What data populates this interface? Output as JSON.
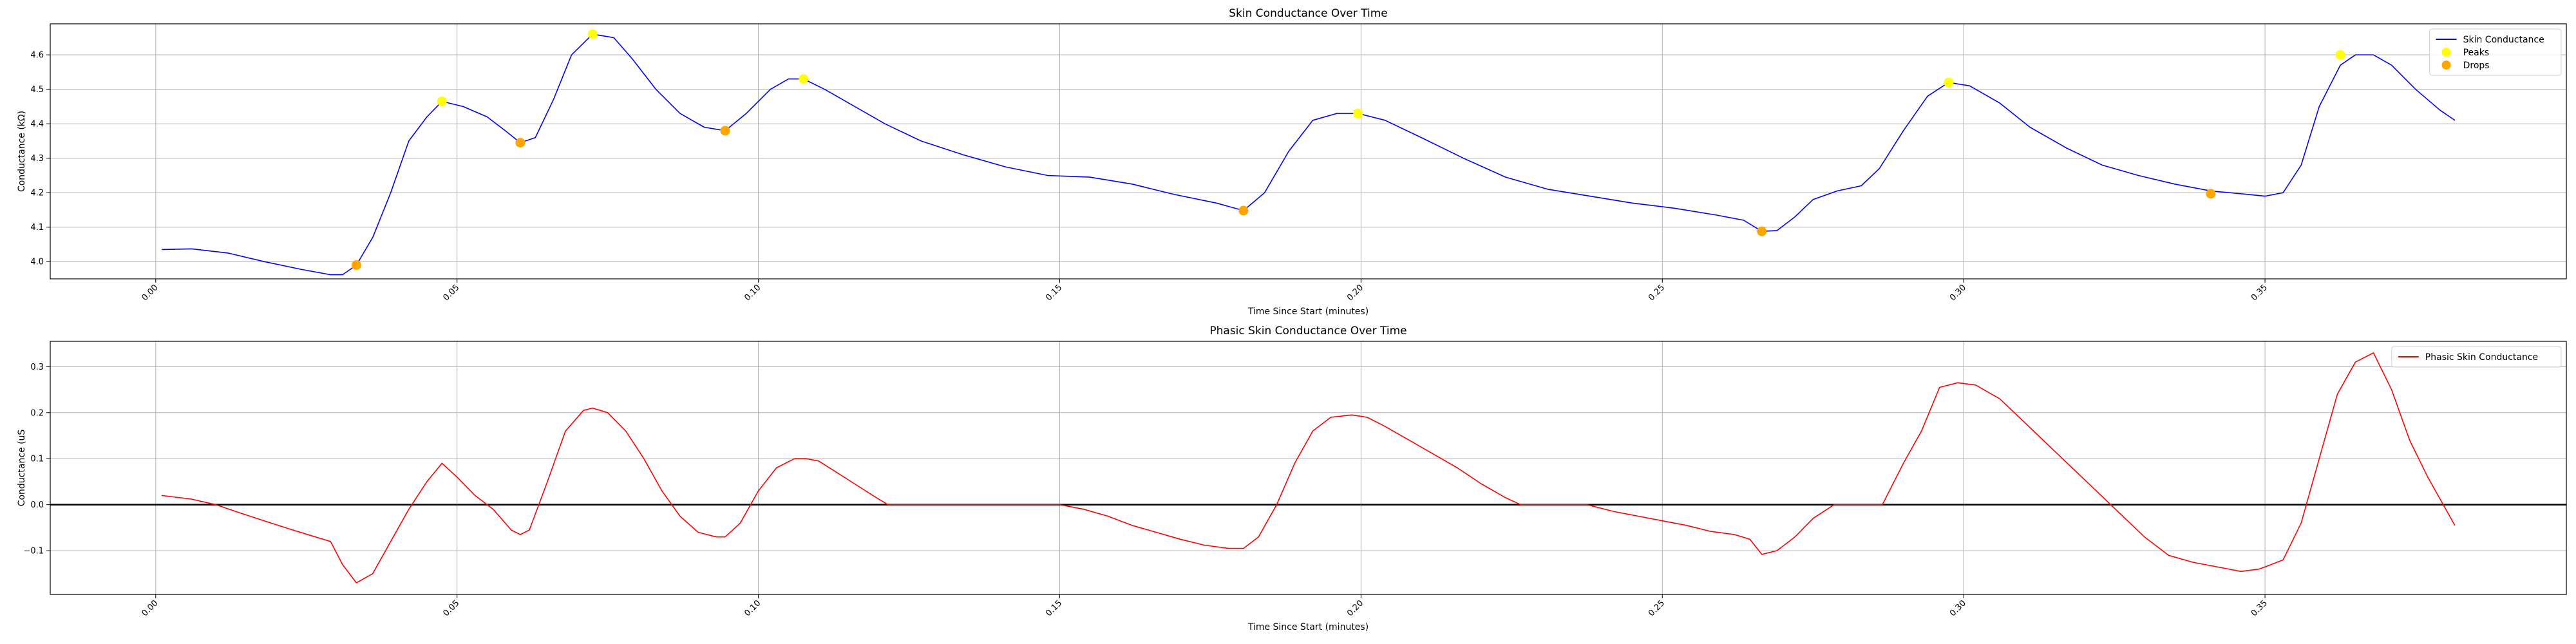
{
  "chart_data": [
    {
      "type": "line",
      "title": "Skin Conductance Over Time",
      "xlabel": "Time Since Start (minutes)",
      "ylabel": "Conductance (kΩ)",
      "xlim": [
        -0.0175,
        0.4
      ],
      "ylim": [
        3.95,
        4.69
      ],
      "xticks": [
        0.0,
        0.05,
        0.1,
        0.15,
        0.2,
        0.25,
        0.3,
        0.35
      ],
      "xtick_labels": [
        "0.00",
        "0.05",
        "0.10",
        "0.15",
        "0.20",
        "0.25",
        "0.30",
        "0.35"
      ],
      "yticks": [
        4.0,
        4.1,
        4.2,
        4.3,
        4.4,
        4.5,
        4.6
      ],
      "ytick_labels": [
        "4.0",
        "4.1",
        "4.2",
        "4.3",
        "4.4",
        "4.5",
        "4.6"
      ],
      "grid": true,
      "legend_position": "top-right",
      "series": [
        {
          "name": "Skin Conductance",
          "kind": "line",
          "color": "#0000ff",
          "x": [
            0.001,
            0.006,
            0.012,
            0.018,
            0.024,
            0.029,
            0.031,
            0.0333,
            0.036,
            0.039,
            0.042,
            0.045,
            0.0475,
            0.051,
            0.055,
            0.058,
            0.0605,
            0.063,
            0.066,
            0.069,
            0.0725,
            0.076,
            0.079,
            0.083,
            0.087,
            0.091,
            0.0945,
            0.098,
            0.102,
            0.105,
            0.1075,
            0.111,
            0.116,
            0.121,
            0.127,
            0.134,
            0.141,
            0.148,
            0.155,
            0.162,
            0.169,
            0.176,
            0.1805,
            0.184,
            0.188,
            0.192,
            0.196,
            0.1995,
            0.204,
            0.21,
            0.217,
            0.224,
            0.231,
            0.238,
            0.245,
            0.252,
            0.259,
            0.2635,
            0.2665,
            0.269,
            0.272,
            0.275,
            0.279,
            0.283,
            0.286,
            0.29,
            0.294,
            0.2975,
            0.301,
            0.306,
            0.311,
            0.317,
            0.323,
            0.329,
            0.335,
            0.341,
            0.346,
            0.35,
            0.353,
            0.356,
            0.359,
            0.3625,
            0.365,
            0.368,
            0.371,
            0.375,
            0.379,
            0.3815
          ],
          "y": [
            4.035,
            4.037,
            4.025,
            4.0,
            3.978,
            3.962,
            3.962,
            3.99,
            4.07,
            4.2,
            4.35,
            4.42,
            4.465,
            4.45,
            4.42,
            4.38,
            4.345,
            4.36,
            4.47,
            4.6,
            4.66,
            4.65,
            4.59,
            4.5,
            4.43,
            4.39,
            4.38,
            4.43,
            4.5,
            4.53,
            4.53,
            4.5,
            4.45,
            4.4,
            4.35,
            4.31,
            4.275,
            4.25,
            4.245,
            4.225,
            4.195,
            4.17,
            4.148,
            4.2,
            4.32,
            4.41,
            4.43,
            4.43,
            4.41,
            4.36,
            4.3,
            4.245,
            4.21,
            4.19,
            4.17,
            4.155,
            4.135,
            4.12,
            4.088,
            4.09,
            4.13,
            4.18,
            4.205,
            4.22,
            4.27,
            4.38,
            4.48,
            4.52,
            4.51,
            4.46,
            4.39,
            4.33,
            4.28,
            4.25,
            4.225,
            4.205,
            4.197,
            4.19,
            4.2,
            4.28,
            4.45,
            4.57,
            4.6,
            4.6,
            4.57,
            4.5,
            4.44,
            4.41
          ]
        },
        {
          "name": "Peaks",
          "kind": "scatter",
          "color": "#ffff00",
          "x": [
            0.0475,
            0.0725,
            0.1075,
            0.1995,
            0.2975,
            0.3625
          ],
          "y": [
            4.465,
            4.66,
            4.53,
            4.43,
            4.52,
            4.6
          ]
        },
        {
          "name": "Drops",
          "kind": "scatter",
          "color": "#ffa500",
          "x": [
            0.0333,
            0.0605,
            0.0945,
            0.1805,
            0.2665,
            0.341
          ],
          "y": [
            3.99,
            4.345,
            4.38,
            4.148,
            4.088,
            4.197
          ]
        }
      ]
    },
    {
      "type": "line",
      "title": "Phasic Skin Conductance Over Time",
      "xlabel": "Time Since Start (minutes)",
      "ylabel": "Conductance (uS",
      "xlim": [
        -0.0175,
        0.4
      ],
      "ylim": [
        -0.195,
        0.355
      ],
      "xticks": [
        0.0,
        0.05,
        0.1,
        0.15,
        0.2,
        0.25,
        0.3,
        0.35
      ],
      "xtick_labels": [
        "0.00",
        "0.05",
        "0.10",
        "0.15",
        "0.20",
        "0.25",
        "0.30",
        "0.35"
      ],
      "yticks": [
        -0.1,
        0.0,
        0.1,
        0.2,
        0.3
      ],
      "ytick_labels": [
        "−0.1",
        "0.0",
        "0.1",
        "0.2",
        "0.3"
      ],
      "grid": true,
      "zero_line": true,
      "legend_position": "top-right",
      "series": [
        {
          "name": "Phasic Skin Conductance",
          "kind": "line",
          "color": "#ff0000",
          "x": [
            0.001,
            0.006,
            0.01,
            0.014,
            0.018,
            0.022,
            0.026,
            0.029,
            0.031,
            0.0333,
            0.036,
            0.039,
            0.042,
            0.045,
            0.0475,
            0.05,
            0.053,
            0.056,
            0.059,
            0.0605,
            0.062,
            0.065,
            0.068,
            0.071,
            0.0725,
            0.075,
            0.078,
            0.081,
            0.084,
            0.087,
            0.09,
            0.093,
            0.0945,
            0.097,
            0.1,
            0.103,
            0.106,
            0.108,
            0.11,
            0.113,
            0.116,
            0.119,
            0.1215,
            0.15,
            0.154,
            0.158,
            0.162,
            0.166,
            0.17,
            0.174,
            0.178,
            0.1805,
            0.183,
            0.186,
            0.189,
            0.192,
            0.195,
            0.1985,
            0.201,
            0.204,
            0.208,
            0.212,
            0.216,
            0.22,
            0.224,
            0.2265,
            0.2375,
            0.242,
            0.246,
            0.25,
            0.254,
            0.258,
            0.262,
            0.2645,
            0.2665,
            0.269,
            0.272,
            0.275,
            0.2785,
            0.2865,
            0.29,
            0.293,
            0.296,
            0.299,
            0.302,
            0.306,
            0.31,
            0.314,
            0.318,
            0.322,
            0.326,
            0.33,
            0.334,
            0.338,
            0.342,
            0.346,
            0.349,
            0.351,
            0.353,
            0.356,
            0.359,
            0.362,
            0.365,
            0.368,
            0.371,
            0.374,
            0.377,
            0.3815
          ],
          "y": [
            0.02,
            0.012,
            0.0,
            -0.018,
            -0.035,
            -0.052,
            -0.068,
            -0.08,
            -0.13,
            -0.17,
            -0.15,
            -0.08,
            -0.01,
            0.05,
            0.09,
            0.06,
            0.02,
            -0.01,
            -0.055,
            -0.065,
            -0.055,
            0.05,
            0.16,
            0.205,
            0.21,
            0.2,
            0.16,
            0.1,
            0.03,
            -0.025,
            -0.06,
            -0.07,
            -0.07,
            -0.04,
            0.03,
            0.08,
            0.1,
            0.1,
            0.095,
            0.07,
            0.045,
            0.02,
            0.0,
            0.0,
            -0.01,
            -0.025,
            -0.045,
            -0.06,
            -0.075,
            -0.088,
            -0.095,
            -0.095,
            -0.07,
            0.0,
            0.09,
            0.16,
            0.19,
            0.195,
            0.19,
            0.17,
            0.14,
            0.11,
            0.08,
            0.045,
            0.015,
            0.0,
            0.0,
            -0.015,
            -0.025,
            -0.035,
            -0.045,
            -0.058,
            -0.065,
            -0.075,
            -0.108,
            -0.1,
            -0.07,
            -0.03,
            0.0,
            0.0,
            0.09,
            0.16,
            0.255,
            0.265,
            0.26,
            0.23,
            0.18,
            0.13,
            0.08,
            0.03,
            -0.02,
            -0.07,
            -0.11,
            -0.125,
            -0.135,
            -0.145,
            -0.14,
            -0.13,
            -0.12,
            -0.04,
            0.1,
            0.24,
            0.31,
            0.33,
            0.25,
            0.14,
            0.06,
            -0.045
          ]
        }
      ]
    }
  ]
}
